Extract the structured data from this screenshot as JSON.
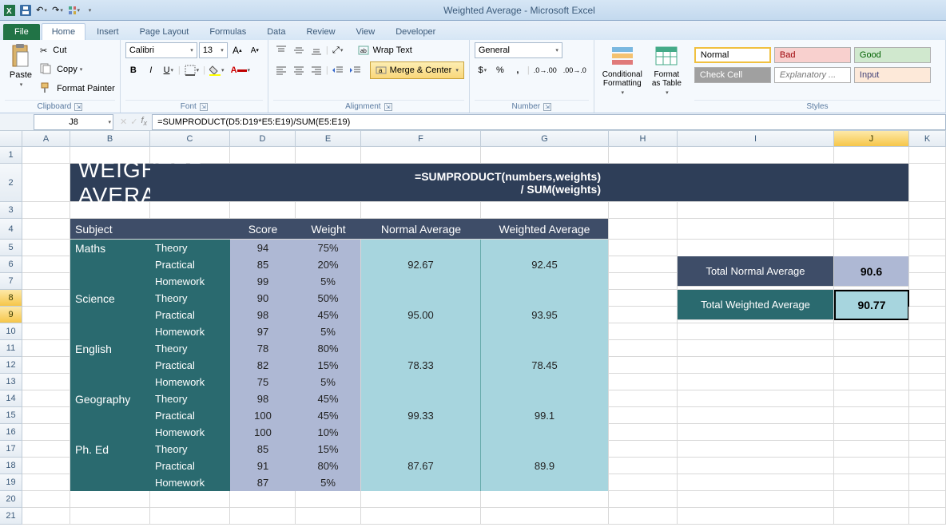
{
  "app": {
    "title": "Weighted Average - Microsoft Excel"
  },
  "tabs": {
    "file": "File",
    "home": "Home",
    "insert": "Insert",
    "page": "Page Layout",
    "formulas": "Formulas",
    "data": "Data",
    "review": "Review",
    "view": "View",
    "developer": "Developer"
  },
  "ribbon": {
    "clipboard": {
      "label": "Clipboard",
      "paste": "Paste",
      "cut": "Cut",
      "copy": "Copy",
      "painter": "Format Painter"
    },
    "font": {
      "label": "Font",
      "name": "Calibri",
      "size": "13"
    },
    "alignment": {
      "label": "Alignment",
      "wrap": "Wrap Text",
      "merge": "Merge & Center"
    },
    "number": {
      "label": "Number",
      "format": "General"
    },
    "cond": "Conditional\nFormatting",
    "fmt_table": "Format\nas Table",
    "styles": {
      "label": "Styles",
      "normal": "Normal",
      "bad": "Bad",
      "good": "Good",
      "check": "Check Cell",
      "explain": "Explanatory ...",
      "input": "Input"
    }
  },
  "formula_bar": {
    "cell": "J8",
    "formula": "=SUMPRODUCT(D5:D19*E5:E19)/SUM(E5:E19)"
  },
  "columns": [
    "A",
    "B",
    "C",
    "D",
    "E",
    "F",
    "G",
    "H",
    "I",
    "J",
    "K"
  ],
  "col_widths": {
    "A": 60,
    "B": 100,
    "C": 100,
    "D": 82,
    "E": 82,
    "F": 150,
    "G": 160,
    "H": 86,
    "I": 196,
    "J": 94,
    "K": 46
  },
  "content": {
    "banner_title": "WEIGHTED AVERAGE",
    "banner_formula": "=SUMPRODUCT(numbers,weights) / SUM(weights)",
    "headers": {
      "subject": "Subject",
      "score": "Score",
      "weight": "Weight",
      "normal": "Normal Average",
      "weighted": "Weighted Average"
    },
    "subjects": [
      {
        "name": "Maths",
        "rows": [
          {
            "type": "Theory",
            "score": 94,
            "weight": "75%"
          },
          {
            "type": "Practical",
            "score": 85,
            "weight": "20%",
            "normal": "92.67",
            "weighted": "92.45"
          },
          {
            "type": "Homework",
            "score": 99,
            "weight": "5%"
          }
        ]
      },
      {
        "name": "Science",
        "rows": [
          {
            "type": "Theory",
            "score": 90,
            "weight": "50%"
          },
          {
            "type": "Practical",
            "score": 98,
            "weight": "45%",
            "normal": "95.00",
            "weighted": "93.95"
          },
          {
            "type": "Homework",
            "score": 97,
            "weight": "5%"
          }
        ]
      },
      {
        "name": "English",
        "rows": [
          {
            "type": "Theory",
            "score": 78,
            "weight": "80%"
          },
          {
            "type": "Practical",
            "score": 82,
            "weight": "15%",
            "normal": "78.33",
            "weighted": "78.45"
          },
          {
            "type": "Homework",
            "score": 75,
            "weight": "5%"
          }
        ]
      },
      {
        "name": "Geography",
        "rows": [
          {
            "type": "Theory",
            "score": 98,
            "weight": "45%"
          },
          {
            "type": "Practical",
            "score": 100,
            "weight": "45%",
            "normal": "99.33",
            "weighted": "99.1"
          },
          {
            "type": "Homework",
            "score": 100,
            "weight": "10%"
          }
        ]
      },
      {
        "name": "Ph. Ed",
        "rows": [
          {
            "type": "Theory",
            "score": 85,
            "weight": "15%"
          },
          {
            "type": "Practical",
            "score": 91,
            "weight": "80%",
            "normal": "87.67",
            "weighted": "89.9"
          },
          {
            "type": "Homework",
            "score": 87,
            "weight": "5%"
          }
        ]
      }
    ],
    "summary": {
      "normal_label": "Total Normal Average",
      "normal_value": "90.6",
      "weighted_label": "Total Weighted Average",
      "weighted_value": "90.77"
    }
  },
  "colors": {
    "banner_bg": "#2e3e58",
    "thead_bg": "#3e4d68",
    "subj_bg": "#2a6a6f",
    "score_bg": "#aeb8d4",
    "avg_bg": "#a7d5de"
  }
}
